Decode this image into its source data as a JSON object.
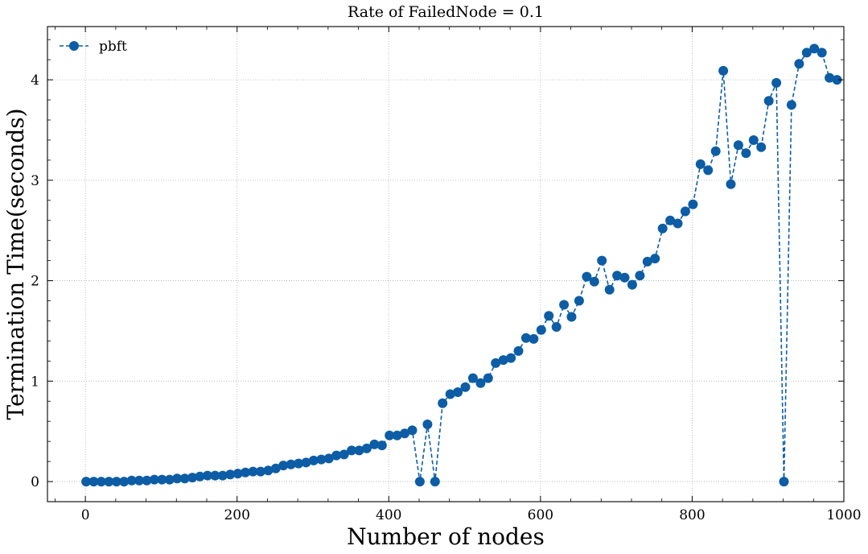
{
  "chart_data": {
    "type": "line",
    "title": "Rate of FailedNode = 0.1",
    "xlabel": "Number of nodes",
    "ylabel": "Termination Time(seconds)",
    "xlim": [
      -50,
      1000
    ],
    "ylim": [
      -0.2,
      4.53
    ],
    "xticks": [
      0,
      200,
      400,
      600,
      800,
      1000
    ],
    "yticks": [
      0,
      1,
      2,
      3,
      4
    ],
    "grid": true,
    "legend_position": "top-left",
    "series": [
      {
        "name": "pbft",
        "color": "#0c5da5",
        "line_style": "dashed",
        "marker": "circle",
        "x": [
          1,
          11,
          21,
          31,
          41,
          51,
          61,
          71,
          81,
          91,
          101,
          111,
          121,
          131,
          141,
          151,
          161,
          171,
          181,
          191,
          201,
          211,
          221,
          231,
          241,
          251,
          261,
          271,
          281,
          291,
          301,
          311,
          321,
          331,
          341,
          351,
          361,
          371,
          381,
          391,
          401,
          411,
          421,
          431,
          441,
          451,
          461,
          471,
          481,
          491,
          501,
          511,
          521,
          531,
          541,
          551,
          561,
          571,
          581,
          591,
          601,
          611,
          621,
          631,
          641,
          651,
          661,
          671,
          681,
          691,
          701,
          711,
          721,
          731,
          741,
          751,
          761,
          771,
          781,
          791,
          801,
          811,
          821,
          831,
          841,
          851,
          861,
          871,
          881,
          891,
          901,
          911,
          921,
          931,
          941,
          951,
          961,
          971,
          981,
          991
        ],
        "y": [
          0.0,
          0.0,
          0.0,
          0.0,
          0.0,
          0.0,
          0.01,
          0.01,
          0.01,
          0.02,
          0.02,
          0.02,
          0.03,
          0.03,
          0.04,
          0.05,
          0.06,
          0.06,
          0.06,
          0.07,
          0.08,
          0.09,
          0.1,
          0.1,
          0.11,
          0.13,
          0.16,
          0.17,
          0.18,
          0.19,
          0.21,
          0.22,
          0.23,
          0.26,
          0.27,
          0.31,
          0.31,
          0.33,
          0.37,
          0.36,
          0.46,
          0.46,
          0.48,
          0.51,
          0.0,
          0.57,
          0.0,
          0.78,
          0.87,
          0.89,
          0.94,
          1.03,
          0.98,
          1.03,
          1.18,
          1.21,
          1.23,
          1.3,
          1.43,
          1.42,
          1.51,
          1.65,
          1.54,
          1.76,
          1.64,
          1.8,
          2.04,
          1.99,
          2.2,
          1.91,
          2.05,
          2.03,
          1.96,
          2.05,
          2.19,
          2.22,
          2.52,
          2.6,
          2.57,
          2.69,
          2.76,
          3.16,
          3.1,
          3.29,
          4.09,
          2.96,
          3.35,
          3.27,
          3.4,
          3.33,
          3.79,
          3.97,
          0.0,
          3.75,
          4.16,
          4.27,
          4.31,
          4.27,
          4.02,
          4.0
        ]
      }
    ]
  }
}
